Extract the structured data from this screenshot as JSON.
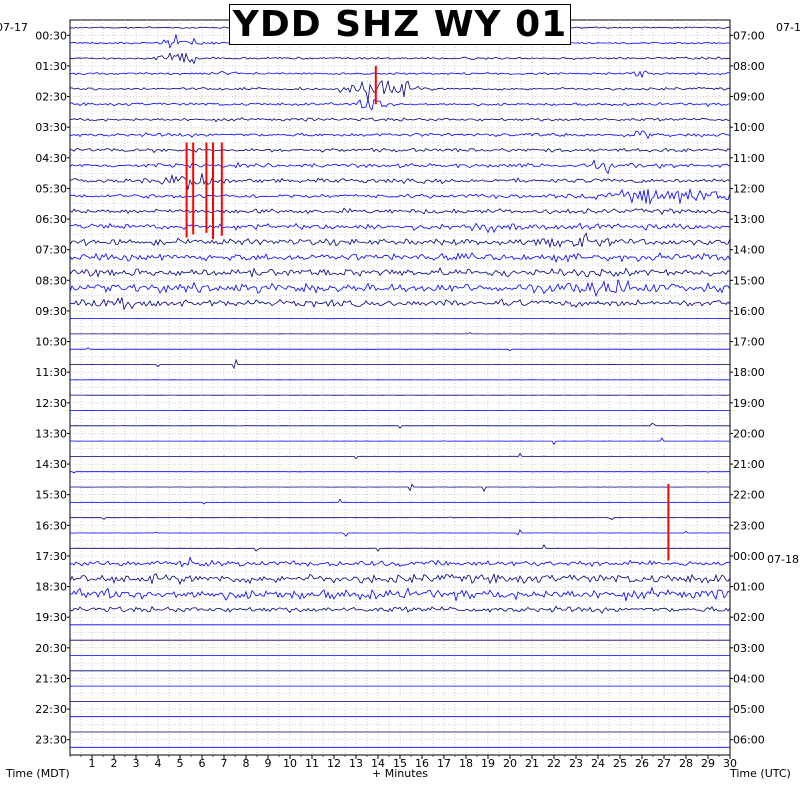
{
  "chart_data": {
    "type": "line",
    "title": "YDD SHZ WY 01",
    "left_date": "07-17",
    "right_date_top": "07-1",
    "right_date_mid": "07-18",
    "left_axis_label": "Time (MDT)",
    "right_axis_label": "Time (UTC)",
    "x_axis_label": "+ Minutes",
    "x_ticks": [
      "1",
      "2",
      "3",
      "4",
      "5",
      "6",
      "7",
      "8",
      "9",
      "10",
      "11",
      "12",
      "13",
      "14",
      "15",
      "16",
      "17",
      "18",
      "19",
      "20",
      "21",
      "22",
      "23",
      "24",
      "25",
      "26",
      "27",
      "28",
      "29",
      "30"
    ],
    "left_hour_labels": [
      "00:30",
      "01:30",
      "02:30",
      "03:30",
      "04:30",
      "05:30",
      "06:30",
      "07:30",
      "08:30",
      "09:30",
      "10:30",
      "11:30",
      "12:30",
      "13:30",
      "14:30",
      "15:30",
      "16:30",
      "17:30",
      "18:30",
      "19:30",
      "20:30",
      "21:30",
      "22:30",
      "23:30"
    ],
    "right_hour_labels": [
      "07:00",
      "08:00",
      "09:00",
      "10:00",
      "11:00",
      "12:00",
      "13:00",
      "14:00",
      "15:00",
      "16:00",
      "17:00",
      "18:00",
      "19:00",
      "20:00",
      "21:00",
      "22:00",
      "23:00",
      "00:00",
      "01:00",
      "02:00",
      "03:00",
      "04:00",
      "05:00",
      "06:00"
    ],
    "xlim": [
      0,
      30
    ],
    "rows_per_day": 48,
    "trace_colors": [
      "#00007a",
      "#0000ff"
    ],
    "event_color": "#ff0000",
    "grid": true
  }
}
